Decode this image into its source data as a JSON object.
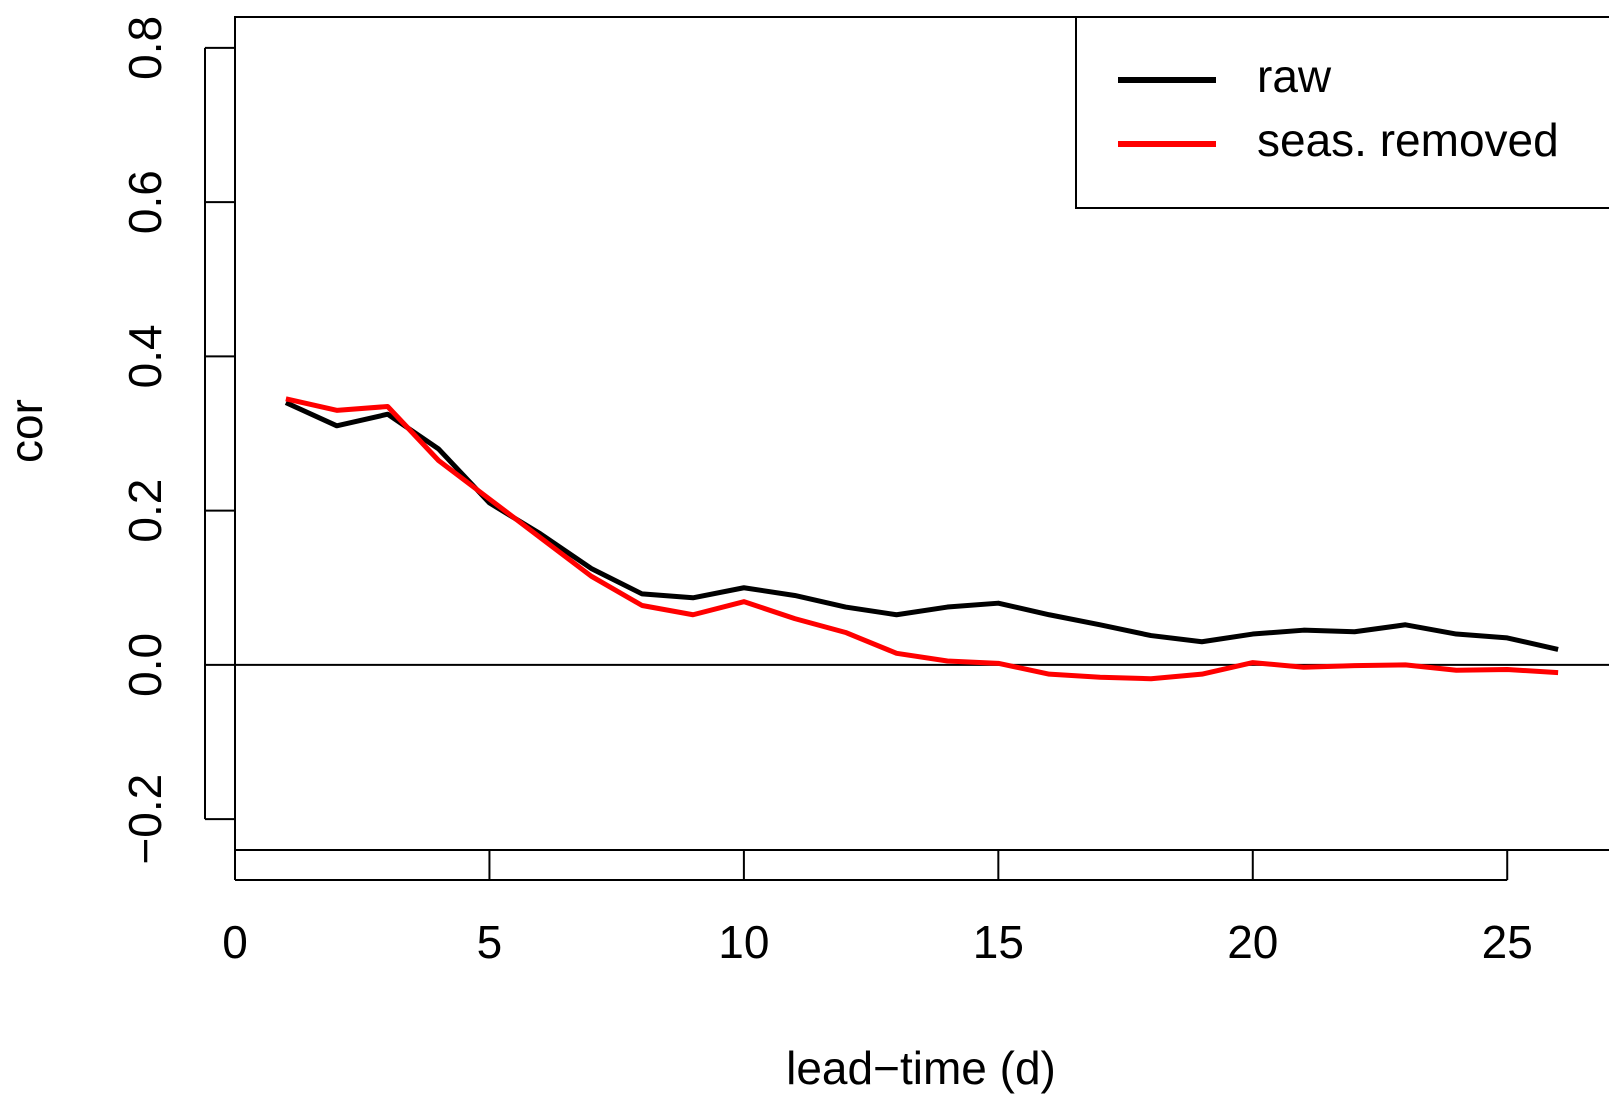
{
  "chart_data": {
    "type": "line",
    "x_label": "cor",
    "y_label_note": null,
    "xlabel": "lead−time (d)",
    "ylabel": "cor",
    "x": [
      1,
      2,
      3,
      4,
      5,
      6,
      7,
      8,
      9,
      10,
      11,
      12,
      13,
      14,
      15,
      16,
      17,
      18,
      19,
      20,
      21,
      22,
      23,
      24,
      25,
      26
    ],
    "series": [
      {
        "name": "raw",
        "color": "#000000",
        "values": [
          0.34,
          0.31,
          0.325,
          0.28,
          0.21,
          0.17,
          0.125,
          0.092,
          0.087,
          0.1,
          0.09,
          0.075,
          0.065,
          0.075,
          0.08,
          0.065,
          0.052,
          0.038,
          0.03,
          0.04,
          0.045,
          0.043,
          0.052,
          0.04,
          0.035,
          0.02
        ]
      },
      {
        "name": "seas. removed",
        "color": "#ff0000",
        "values": [
          0.345,
          0.33,
          0.335,
          0.265,
          0.215,
          0.165,
          0.115,
          0.077,
          0.065,
          0.082,
          0.06,
          0.042,
          0.015,
          0.005,
          0.002,
          -0.012,
          -0.016,
          -0.018,
          -0.012,
          0.003,
          -0.003,
          -0.001,
          0.0,
          -0.007,
          -0.006,
          -0.01
        ]
      }
    ],
    "xlim": [
      0,
      27
    ],
    "ylim": [
      -0.24,
      0.84
    ],
    "xticks": [
      0,
      5,
      10,
      15,
      20,
      25
    ],
    "yticks": [
      {
        "value": -0.2,
        "label": "−0.2"
      },
      {
        "value": 0,
        "label": "0.0"
      },
      0.2,
      0.4,
      0.6,
      0.8
    ],
    "reference_line": 0,
    "legend": "top-right"
  }
}
